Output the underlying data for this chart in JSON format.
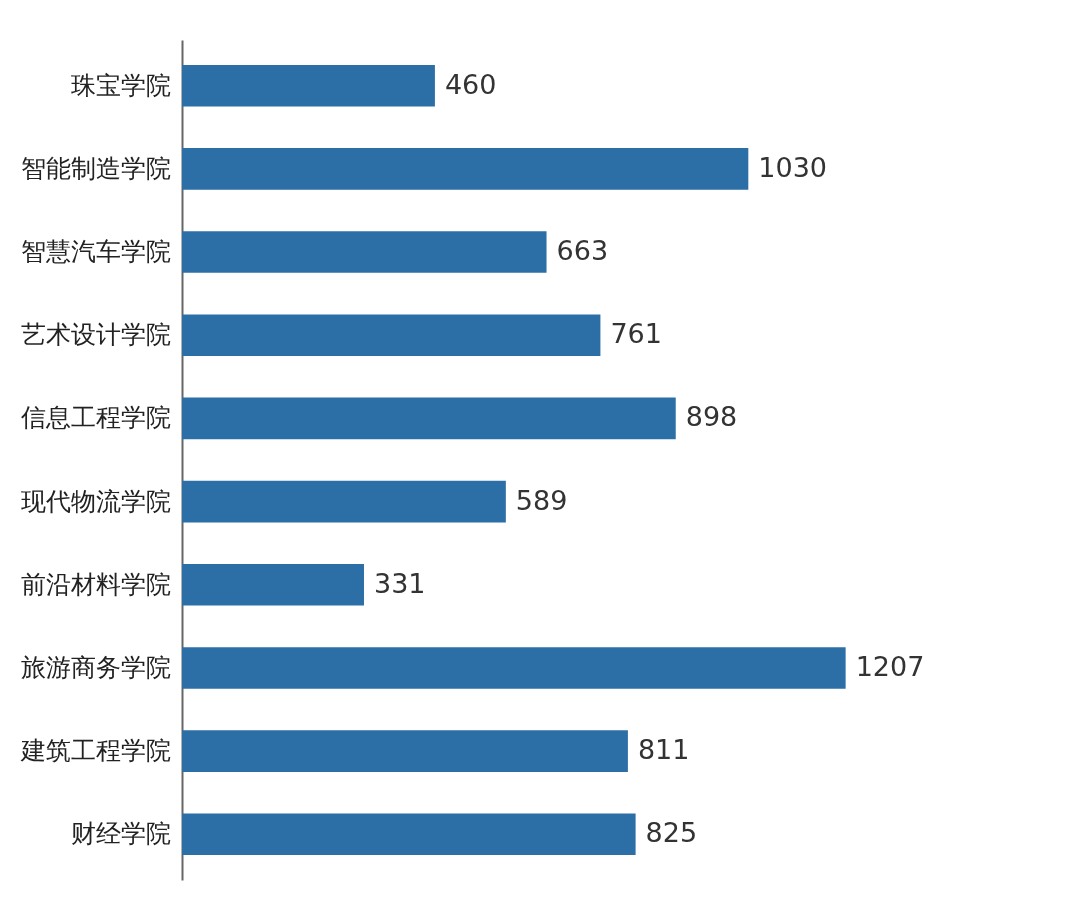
{
  "chart_data": {
    "type": "bar",
    "orientation": "horizontal",
    "categories": [
      "珠宝学院",
      "智能制造学院",
      "智慧汽车学院",
      "艺术设计学院",
      "信息工程学院",
      "现代物流学院",
      "前沿材料学院",
      "旅游商务学院",
      "建筑工程学院",
      "财经学院"
    ],
    "values": [
      460,
      1030,
      663,
      761,
      898,
      589,
      331,
      1207,
      811,
      825
    ],
    "color": "#2c6fa7",
    "data_labels": true,
    "grid": false
  }
}
